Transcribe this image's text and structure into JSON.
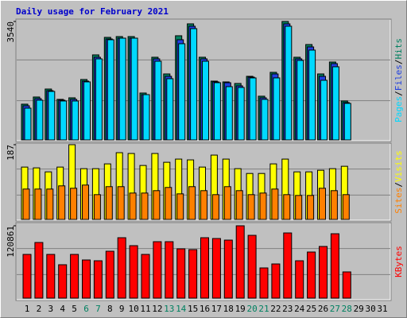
{
  "chart_data": [
    {
      "type": "bar",
      "title": "Daily usage for February 2021",
      "ylim": [
        0,
        3540
      ],
      "yticks": [
        3540
      ],
      "legend_separator": "/",
      "series": [
        {
          "name": "Hits",
          "color": "#008060",
          "values": [
            1069,
            1283,
            1521,
            1212,
            1259,
            1806,
            2542,
            3065,
            3089,
            3089,
            1402,
            2471,
            1972,
            3113,
            3469,
            2471,
            1758,
            1734,
            1687,
            1901,
            1307,
            2020,
            3540,
            2471,
            2851,
            1972,
            2328,
            1164,
            null,
            null,
            null
          ]
        },
        {
          "name": "Files",
          "color": "#2040e0",
          "values": [
            1021,
            1235,
            1473,
            1188,
            1212,
            1758,
            2471,
            3017,
            3041,
            3041,
            1354,
            2423,
            1901,
            2994,
            3398,
            2423,
            1734,
            1710,
            1616,
            1877,
            1259,
            1972,
            3469,
            2423,
            2780,
            1901,
            2281,
            1117,
            null,
            null,
            null
          ]
        },
        {
          "name": "Pages",
          "color": "#00d8ff",
          "values": [
            950,
            1188,
            1450,
            1164,
            1164,
            1735,
            2423,
            2994,
            3041,
            3041,
            1354,
            2352,
            1830,
            2875,
            3326,
            2352,
            1711,
            1592,
            1568,
            1853,
            1212,
            1854,
            3398,
            2376,
            2685,
            1782,
            2186,
            1093,
            null,
            null,
            null
          ]
        }
      ]
    },
    {
      "type": "bar",
      "ylim": [
        0,
        187
      ],
      "yticks": [
        187
      ],
      "legend_separator": "/",
      "series": [
        {
          "name": "Visits",
          "color": "#ffff00",
          "values": [
            131,
            129,
            119,
            131,
            187,
            127,
            127,
            139,
            167,
            165,
            135,
            165,
            143,
            151,
            149,
            131,
            161,
            151,
            127,
            115,
            115,
            139,
            151,
            119,
            119,
            123,
            127,
            133,
            null,
            null,
            null
          ]
        },
        {
          "name": "Sites",
          "color": "#ff8000",
          "values": [
            76,
            76,
            76,
            84,
            78,
            86,
            62,
            82,
            82,
            66,
            66,
            72,
            80,
            64,
            82,
            72,
            62,
            82,
            72,
            62,
            66,
            76,
            62,
            60,
            60,
            78,
            72,
            62,
            null,
            null,
            null
          ]
        }
      ]
    },
    {
      "type": "bar",
      "ylim": [
        0,
        120861
      ],
      "yticks": [
        120861
      ],
      "categories": [
        "1",
        "2",
        "3",
        "4",
        "5",
        "6",
        "7",
        "8",
        "9",
        "10",
        "11",
        "12",
        "13",
        "14",
        "15",
        "16",
        "17",
        "18",
        "19",
        "20",
        "21",
        "22",
        "23",
        "24",
        "25",
        "26",
        "27",
        "28",
        "29",
        "30",
        "31"
      ],
      "category_colors": [
        "#000000",
        "#000000",
        "#000000",
        "#000000",
        "#000000",
        "#008060",
        "#008060",
        "#000000",
        "#000000",
        "#000000",
        "#000000",
        "#000000",
        "#008060",
        "#008060",
        "#000000",
        "#000000",
        "#000000",
        "#000000",
        "#000000",
        "#008060",
        "#008060",
        "#000000",
        "#000000",
        "#000000",
        "#000000",
        "#000000",
        "#008060",
        "#008060",
        "#000000",
        "#000000",
        "#000000"
      ],
      "series": [
        {
          "name": "KBytes",
          "color": "#ff0000",
          "values": [
            73040,
            92960,
            73040,
            55776,
            73040,
            63744,
            62416,
            78352,
            100928,
            87648,
            73040,
            94288,
            94288,
            82336,
            81008,
            100928,
            99600,
            96944,
            120861,
            104912,
            50464,
            57104,
            108896,
            62416,
            77024,
            86320,
            107568,
            43824,
            null,
            null,
            null
          ]
        }
      ]
    }
  ]
}
